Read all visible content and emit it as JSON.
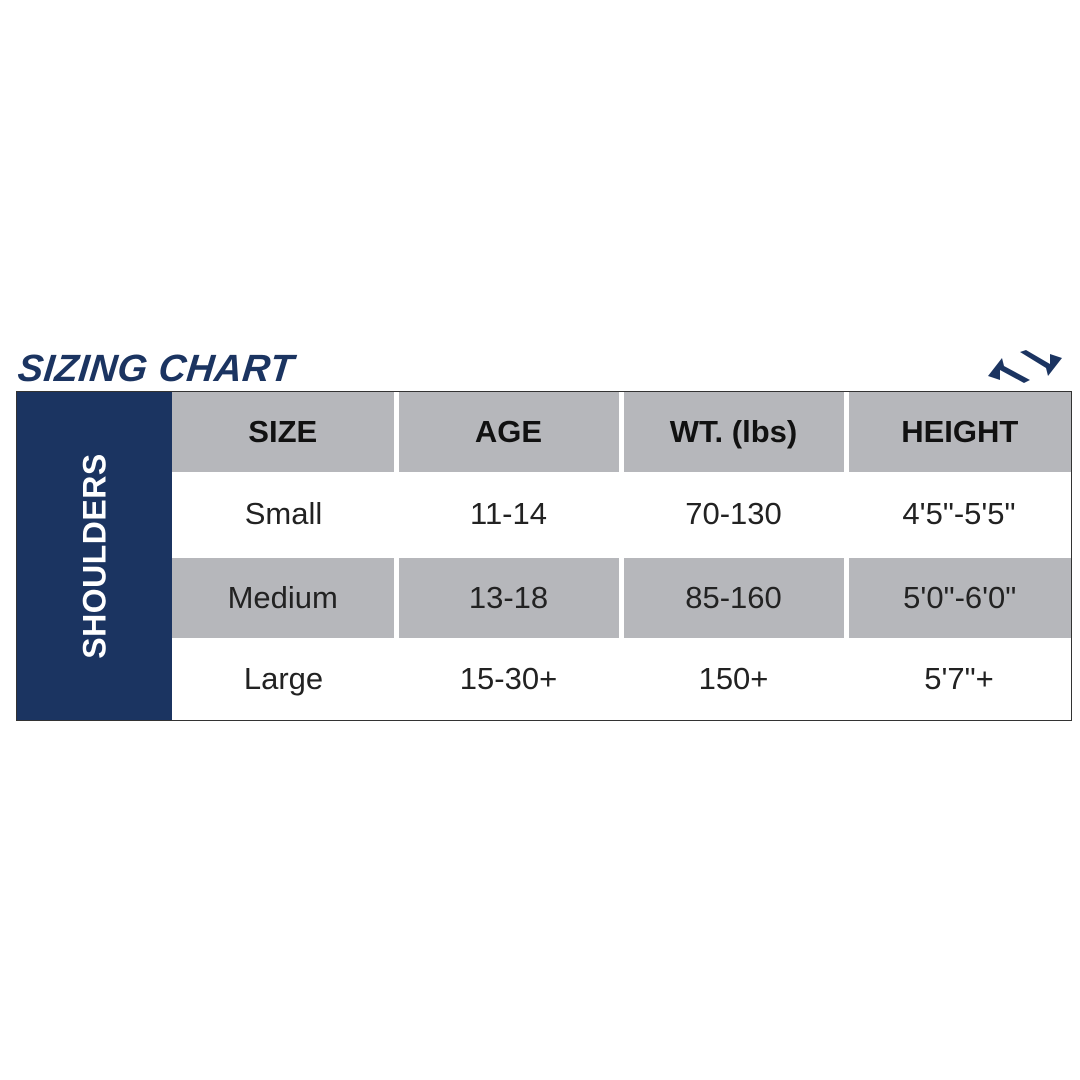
{
  "title": "SIZING CHART",
  "logo_icon": "brand-arrows-logo",
  "colors": {
    "navy": "#1b3461",
    "gray": "#b6b7bb"
  },
  "table": {
    "category": "SHOULDERS",
    "headers": [
      "SIZE",
      "AGE",
      "WT. (lbs)",
      "HEIGHT"
    ],
    "rows": [
      [
        "Small",
        "11-14",
        "70-130",
        "4'5\"-5'5\""
      ],
      [
        "Medium",
        "13-18",
        "85-160",
        "5'0\"-6'0\""
      ],
      [
        "Large",
        "15-30+",
        "150+",
        "5'7\"+"
      ]
    ]
  }
}
